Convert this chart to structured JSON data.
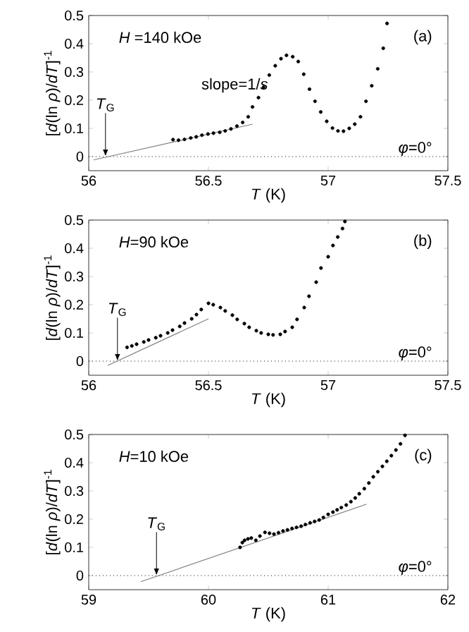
{
  "chart_data": [
    {
      "type": "scatter",
      "xlabel": "*T* (K)",
      "ylabel": "[*d*(ln *ρ*)/*dT*]$^{-1}$",
      "xlim": [
        56,
        57.5
      ],
      "ylim": [
        -0.05,
        0.5
      ],
      "xticks": [
        56,
        56.5,
        57,
        57.5
      ],
      "yticks": [
        0,
        0.1,
        0.2,
        0.3,
        0.4,
        0.5
      ],
      "series": [
        {
          "marker": "circle",
          "color": "#000000",
          "x": [
            56.352,
            56.375,
            56.4,
            56.426,
            56.449,
            56.473,
            56.498,
            56.521,
            56.547,
            56.57,
            56.594,
            56.619,
            56.643,
            56.666,
            56.684,
            56.709,
            56.73,
            56.754,
            56.779,
            56.803,
            56.826,
            56.852,
            56.875,
            56.898,
            56.922,
            56.945,
            56.969,
            56.994,
            57.018,
            57.041,
            57.064,
            57.088,
            57.111,
            57.135,
            57.158,
            57.182,
            57.207,
            57.23,
            57.246
          ],
          "values": [
            0.06,
            0.058,
            0.061,
            0.066,
            0.07,
            0.076,
            0.08,
            0.083,
            0.086,
            0.091,
            0.098,
            0.108,
            0.121,
            0.141,
            0.176,
            0.209,
            0.246,
            0.289,
            0.322,
            0.347,
            0.359,
            0.354,
            0.337,
            0.292,
            0.239,
            0.196,
            0.158,
            0.125,
            0.101,
            0.091,
            0.09,
            0.1,
            0.115,
            0.141,
            0.196,
            0.251,
            0.311,
            0.384,
            0.472
          ]
        },
        {
          "type": "line",
          "marker": "none",
          "color": "#808080",
          "x": [
            56.02,
            56.684
          ],
          "values": [
            -0.012,
            0.115
          ]
        }
      ],
      "ref_lines": [
        {
          "axis": "y",
          "value": 0,
          "line_style": "dotted",
          "color": "#000000"
        }
      ],
      "annotations": [
        "*H* =140 kOe",
        "(a)",
        "*φ*=0°",
        "slope=1/*s*",
        {
          "text": "*T*$_{G}$",
          "x": 56.07,
          "y": 0
        }
      ]
    },
    {
      "type": "scatter",
      "xlabel": "*T* (K)",
      "ylabel": "[*d*(ln *ρ*)/*dT*]$^{-1}$",
      "xlim": [
        56,
        57.5
      ],
      "ylim": [
        -0.05,
        0.5
      ],
      "xticks": [
        56,
        56.5,
        57,
        57.5
      ],
      "yticks": [
        0,
        0.1,
        0.2,
        0.3,
        0.4,
        0.5
      ],
      "series": [
        {
          "marker": "circle",
          "color": "#000000",
          "x": [
            56.16,
            56.18,
            56.2,
            56.23,
            56.25,
            56.28,
            56.3,
            56.33,
            56.35,
            56.38,
            56.4,
            56.43,
            56.45,
            56.47,
            56.5,
            56.52,
            56.55,
            56.57,
            56.6,
            56.62,
            56.65,
            56.67,
            56.7,
            56.72,
            56.75,
            56.77,
            56.8,
            56.82,
            56.85,
            56.87,
            56.9,
            56.92,
            56.95,
            56.97,
            57.0,
            57.02,
            57.04,
            57.06,
            57.07
          ],
          "values": [
            0.049,
            0.054,
            0.06,
            0.068,
            0.075,
            0.083,
            0.09,
            0.1,
            0.11,
            0.123,
            0.135,
            0.15,
            0.165,
            0.183,
            0.205,
            0.2,
            0.19,
            0.178,
            0.163,
            0.148,
            0.133,
            0.12,
            0.108,
            0.1,
            0.095,
            0.093,
            0.095,
            0.105,
            0.12,
            0.148,
            0.19,
            0.23,
            0.28,
            0.33,
            0.37,
            0.41,
            0.44,
            0.47,
            0.495
          ]
        },
        {
          "type": "line",
          "marker": "none",
          "color": "#808080",
          "x": [
            56.08,
            56.5
          ],
          "values": [
            -0.015,
            0.15
          ]
        }
      ],
      "ref_lines": [
        {
          "axis": "y",
          "value": 0,
          "line_style": "dotted",
          "color": "#000000"
        }
      ],
      "annotations": [
        "*H*=90 kOe",
        "(b)",
        "*φ*=0°",
        {
          "text": "*T*$_{G}$",
          "x": 56.12,
          "y": 0
        }
      ]
    },
    {
      "type": "scatter",
      "xlabel": "*T* (K)",
      "ylabel": "[*d*(ln *ρ*)/*dT*]$^{-1}$",
      "xlim": [
        59,
        62
      ],
      "ylim": [
        -0.05,
        0.5
      ],
      "xticks": [
        59,
        60,
        61,
        62
      ],
      "yticks": [
        0,
        0.1,
        0.2,
        0.3,
        0.4,
        0.5
      ],
      "series": [
        {
          "marker": "circle",
          "color": "#000000",
          "x": [
            60.264,
            60.283,
            60.302,
            60.33,
            60.358,
            60.396,
            60.43,
            60.472,
            60.51,
            60.547,
            60.585,
            60.623,
            60.66,
            60.698,
            60.736,
            60.774,
            60.81,
            60.849,
            60.887,
            60.925,
            60.96,
            61.0,
            61.04,
            61.075,
            61.11,
            61.151,
            61.19,
            61.226,
            61.26,
            61.302,
            61.34,
            61.377,
            61.415,
            61.453,
            61.49,
            61.528,
            61.566,
            61.604,
            61.642
          ],
          "values": [
            0.1,
            0.117,
            0.125,
            0.13,
            0.133,
            0.125,
            0.14,
            0.153,
            0.15,
            0.147,
            0.152,
            0.158,
            0.162,
            0.167,
            0.171,
            0.175,
            0.181,
            0.187,
            0.192,
            0.197,
            0.206,
            0.217,
            0.225,
            0.233,
            0.241,
            0.25,
            0.262,
            0.275,
            0.29,
            0.308,
            0.328,
            0.35,
            0.368,
            0.387,
            0.405,
            0.425,
            0.445,
            0.467,
            0.497
          ]
        },
        {
          "type": "line",
          "marker": "none",
          "color": "#808080",
          "x": [
            59.434,
            61.321
          ],
          "values": [
            -0.022,
            0.253
          ]
        }
      ],
      "ref_lines": [
        {
          "axis": "y",
          "value": 0,
          "line_style": "dotted",
          "color": "#000000"
        }
      ],
      "annotations": [
        "*H*=10 kOe",
        "(c)",
        "*φ*=0°",
        {
          "text": "*T*$_{G}$",
          "x": 59.566,
          "y": 0
        }
      ]
    }
  ]
}
